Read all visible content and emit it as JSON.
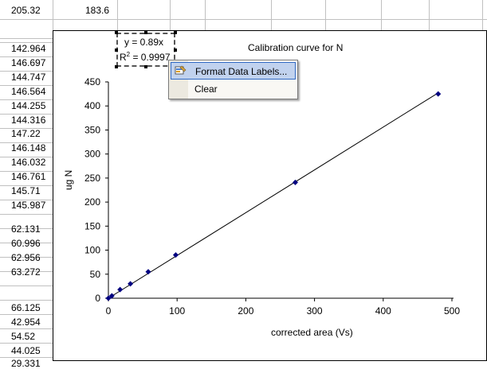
{
  "sheet": {
    "row1": [
      "205.32",
      "183.6"
    ],
    "colA": [
      "142.964",
      "146.697",
      "144.747",
      "146.564",
      "144.255",
      "144.316",
      "147.22",
      "146.148",
      "146.032",
      "146.761",
      "145.71",
      "145.987",
      "62.131",
      "60.996",
      "62.956",
      "63.272",
      "66.125",
      "42.954",
      "54.52",
      "44.025",
      "29.331"
    ]
  },
  "trendline_label": {
    "equation": "y = 0.89x",
    "r_squared_prefix": "R",
    "r_squared_sup": "2",
    "r_squared_value": " = 0.9997"
  },
  "context_menu": {
    "items": [
      {
        "label": "Format Data Labels...",
        "icon": "format-data-labels-icon"
      },
      {
        "label": "Clear"
      }
    ]
  },
  "chart_data": {
    "type": "scatter",
    "title": "Calibration curve for N",
    "xlabel": "corrected area (Vs)",
    "ylabel": "ug N",
    "xlim": [
      0,
      500
    ],
    "ylim": [
      0,
      450
    ],
    "xticks": [
      0,
      100,
      200,
      300,
      400,
      500
    ],
    "yticks": [
      0,
      50,
      100,
      150,
      200,
      250,
      300,
      350,
      400,
      450
    ],
    "series": [
      {
        "points": [
          [
            0,
            0
          ],
          [
            5,
            5
          ],
          [
            17,
            18
          ],
          [
            32,
            30
          ],
          [
            58,
            55
          ],
          [
            98,
            90
          ],
          [
            272,
            241
          ],
          [
            480,
            425
          ]
        ],
        "marker_color": "#000080"
      }
    ],
    "trendline": {
      "slope": 0.89,
      "intercept": 0,
      "x_range": [
        0,
        480
      ]
    },
    "grid": false,
    "legend": "none"
  },
  "colors": {
    "marker": "#000080",
    "gridline": "#c0c0c0",
    "menu_highlight": "#c1d2ee",
    "menu_highlight_border": "#316ac5"
  }
}
